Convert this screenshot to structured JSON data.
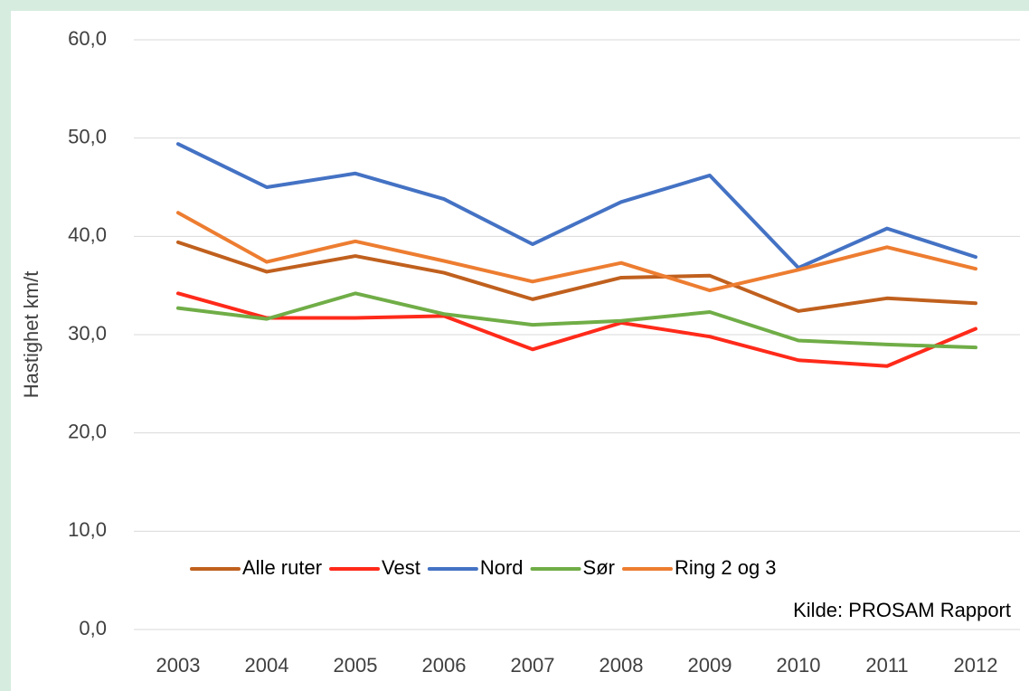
{
  "chart_data": {
    "type": "line",
    "y_label": "Hastighet km/t",
    "annotation": "Kilde: PROSAM Rapport",
    "categories": [
      "2003",
      "2004",
      "2005",
      "2006",
      "2007",
      "2008",
      "2009",
      "2010",
      "2011",
      "2012"
    ],
    "series": [
      {
        "name": "Alle ruter",
        "color": "#c0601e",
        "values": [
          39.4,
          36.4,
          38.0,
          36.3,
          33.6,
          35.8,
          36.0,
          32.4,
          33.7,
          33.2
        ]
      },
      {
        "name": "Vest",
        "color": "#ff2a1a",
        "values": [
          34.2,
          31.7,
          31.7,
          31.9,
          28.5,
          31.2,
          29.8,
          27.4,
          26.8,
          30.6
        ]
      },
      {
        "name": "Nord",
        "color": "#4472c4",
        "values": [
          49.4,
          45.0,
          46.4,
          43.8,
          39.2,
          43.5,
          46.2,
          36.8,
          40.8,
          37.9
        ]
      },
      {
        "name": "Sør",
        "color": "#70ad47",
        "values": [
          32.7,
          31.6,
          34.2,
          32.1,
          31.0,
          31.4,
          32.3,
          29.4,
          29.0,
          28.7
        ]
      },
      {
        "name": "Ring 2 og 3",
        "color": "#ed7d31",
        "values": [
          42.4,
          37.4,
          39.5,
          37.5,
          35.4,
          37.3,
          34.5,
          36.6,
          38.9,
          36.7
        ]
      }
    ],
    "ylim": [
      0,
      60
    ],
    "yticks": [
      {
        "value": 0,
        "label": "0,0"
      },
      {
        "value": 10,
        "label": "10,0"
      },
      {
        "value": 20,
        "label": "20,0"
      },
      {
        "value": 30,
        "label": "30,0"
      },
      {
        "value": 40,
        "label": "40,0"
      },
      {
        "value": 50,
        "label": "50,0"
      },
      {
        "value": 60,
        "label": "60,0"
      }
    ],
    "grid": true,
    "legend": "bottom"
  }
}
